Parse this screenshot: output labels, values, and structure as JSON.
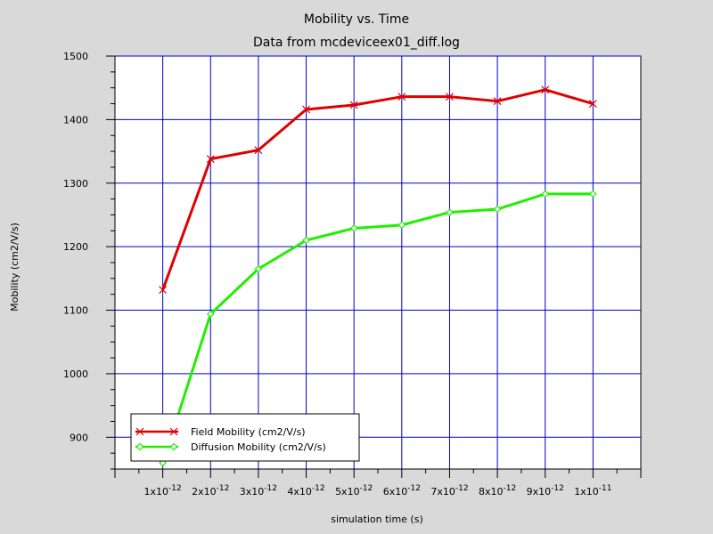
{
  "chart_data": {
    "type": "line",
    "title": "Mobility vs. Time",
    "subtitle": "Data from mcdeviceex01_diff.log",
    "xlabel": "simulation time (s)",
    "ylabel": "Mobility (cm2/V/s)",
    "xlim": [
      0,
      1.1e-11
    ],
    "ylim": [
      850,
      1500
    ],
    "grid": true,
    "legend_position": "bottom-left",
    "x_ticks": [
      {
        "value": 1e-12,
        "mant": "1x10",
        "exp": "-12"
      },
      {
        "value": 2e-12,
        "mant": "2x10",
        "exp": "-12"
      },
      {
        "value": 3e-12,
        "mant": "3x10",
        "exp": "-12"
      },
      {
        "value": 4e-12,
        "mant": "4x10",
        "exp": "-12"
      },
      {
        "value": 5e-12,
        "mant": "5x10",
        "exp": "-12"
      },
      {
        "value": 6e-12,
        "mant": "6x10",
        "exp": "-12"
      },
      {
        "value": 7e-12,
        "mant": "7x10",
        "exp": "-12"
      },
      {
        "value": 8e-12,
        "mant": "8x10",
        "exp": "-12"
      },
      {
        "value": 9e-12,
        "mant": "9x10",
        "exp": "-12"
      },
      {
        "value": 1e-11,
        "mant": "1x10",
        "exp": "-11"
      }
    ],
    "y_ticks": [
      900,
      1000,
      1100,
      1200,
      1300,
      1400,
      1500
    ],
    "x": [
      1e-12,
      2e-12,
      3e-12,
      4e-12,
      5e-12,
      6e-12,
      7e-12,
      8e-12,
      9e-12,
      1e-11
    ],
    "series": [
      {
        "name": "Field Mobility (cm2/V/s)",
        "color": "#e00000",
        "marker": "x",
        "values": [
          1132,
          1338,
          1352,
          1416,
          1423,
          1436,
          1436,
          1429,
          1447,
          1425
        ]
      },
      {
        "name": "Diffusion Mobility (cm2/V/s)",
        "color": "#22ee00",
        "marker": "diamond",
        "values": [
          860,
          1094,
          1165,
          1210,
          1229,
          1234,
          1254,
          1259,
          1283,
          1283
        ]
      }
    ],
    "colors": {
      "background": "#d9d9d9",
      "plot_background": "#ffffff",
      "grid": "#0000cc",
      "axis": "#000000"
    }
  }
}
